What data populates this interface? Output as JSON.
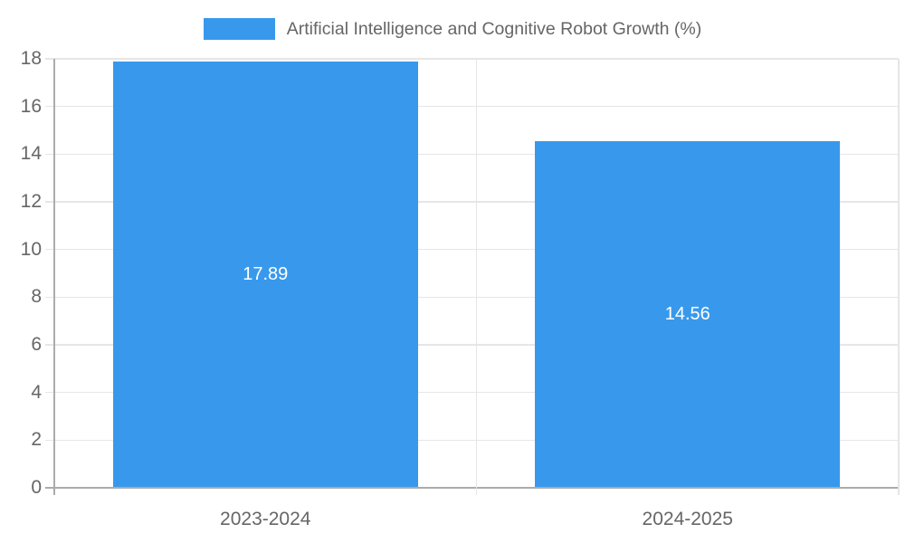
{
  "legend": {
    "label": "Artificial Intelligence and Cognitive Robot Growth (%)"
  },
  "chart_data": {
    "type": "bar",
    "title": "Artificial Intelligence and Cognitive Robot Growth (%)",
    "categories": [
      "2023-2024",
      "2024-2025"
    ],
    "values": [
      17.89,
      14.56
    ],
    "value_labels": [
      "17.89",
      "14.56"
    ],
    "series": [
      {
        "name": "Artificial Intelligence and Cognitive Robot Growth (%)",
        "values": [
          17.89,
          14.56
        ]
      }
    ],
    "xlabel": "",
    "ylabel": "",
    "ylim": [
      0,
      18
    ],
    "ytick_step": 2,
    "ytick_labels": [
      "0",
      "2",
      "4",
      "6",
      "8",
      "10",
      "12",
      "14",
      "16",
      "18"
    ],
    "grid": true,
    "legend_position": "top",
    "value_label_position": "center",
    "colors": {
      "bar": "#3899ec",
      "grid": "#e6e6e6",
      "axis": "#ababab",
      "tick_text": "#666666",
      "value_text": "#ffffff",
      "background": "#ffffff"
    }
  }
}
